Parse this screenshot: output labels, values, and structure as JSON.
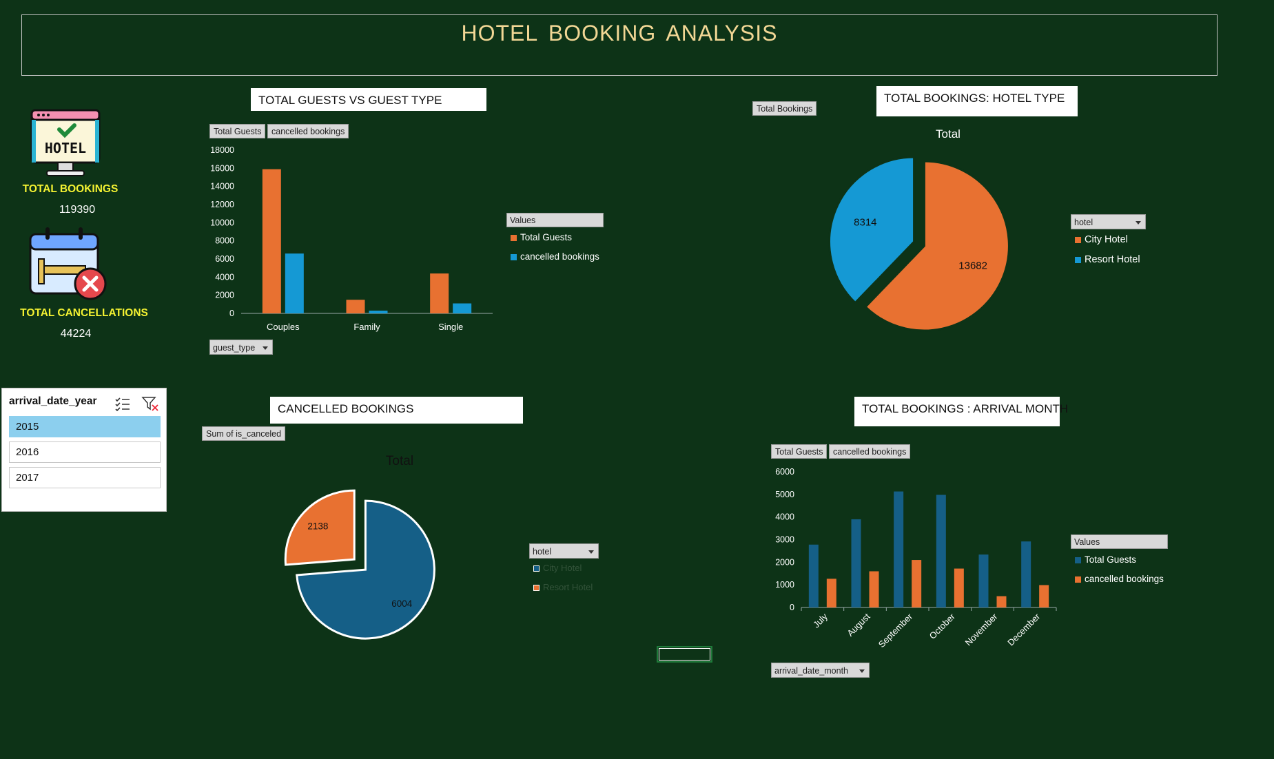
{
  "header": {
    "title": "HOTEL  BOOKING ANALYSIS"
  },
  "colors": {
    "background": "#0d3317",
    "orange": "#e87131",
    "light_blue": "#1599d4",
    "dark_blue": "#155f87",
    "title_gold": "#f2d795",
    "kpi_yellow": "#f4f232"
  },
  "kpis": {
    "bookings_label": "TOTAL BOOKINGS",
    "bookings_value": "119390",
    "bookings_icon": "hotel-monitor-icon",
    "cancellations_label": "TOTAL CANCELLATIONS",
    "cancellations_value": "44224",
    "cancellations_icon": "calendar-cancel-icon"
  },
  "slicer": {
    "title": "arrival_date_year",
    "items": [
      {
        "label": "2015",
        "selected": true
      },
      {
        "label": "2016",
        "selected": false
      },
      {
        "label": "2017",
        "selected": false
      }
    ]
  },
  "guest_chart": {
    "title": "TOTAL GUESTS VS  GUEST TYPE",
    "field_buttons": [
      "Total Guests",
      "cancelled bookings"
    ],
    "filter_label": "guest_type",
    "legend_title": "Values",
    "legend": [
      "Total Guests",
      "cancelled bookings"
    ],
    "y_ticks": [
      "0",
      "2000",
      "4000",
      "6000",
      "8000",
      "10000",
      "12000",
      "14000",
      "16000",
      "18000"
    ]
  },
  "hotel_chart": {
    "title": "TOTAL BOOKINGS: HOTEL TYPE",
    "field_button": "Total Bookings",
    "chart_title": "Total",
    "filter_label": "hotel",
    "legend": [
      "City Hotel",
      "Resort Hotel"
    ]
  },
  "cancel_chart": {
    "title": "CANCELLED BOOKINGS",
    "field_button": "Sum of is_canceled",
    "chart_title": "Total",
    "filter_label": "hotel",
    "legend": [
      "City Hotel",
      "Resort Hotel"
    ]
  },
  "month_chart": {
    "title": "TOTAL BOOKINGS : ARRIVAL MONTH",
    "field_buttons": [
      "Total Guests",
      "cancelled bookings"
    ],
    "filter_label": "arrival_date_month",
    "legend_title": "Values",
    "legend": [
      "Total Guests",
      "cancelled bookings"
    ],
    "y_ticks": [
      "0",
      "1000",
      "2000",
      "3000",
      "4000",
      "5000",
      "6000"
    ]
  },
  "chart_data": [
    {
      "type": "bar",
      "categories": [
        "Couples",
        "Family",
        "Single"
      ],
      "series": [
        {
          "name": "Total Guests",
          "values": [
            15900,
            1500,
            4400
          ]
        },
        {
          "name": "cancelled bookings",
          "values": [
            6600,
            300,
            1100
          ]
        }
      ],
      "ylim": [
        0,
        18000
      ]
    },
    {
      "type": "pie",
      "title": "Total",
      "labels": [
        "City Hotel",
        "Resort Hotel"
      ],
      "values": [
        13682,
        8314
      ]
    },
    {
      "type": "pie",
      "title": "Total",
      "labels": [
        "City Hotel",
        "Resort Hotel"
      ],
      "values": [
        6004,
        2138
      ]
    },
    {
      "type": "bar",
      "categories": [
        "July",
        "August",
        "September",
        "October",
        "November",
        "December"
      ],
      "series": [
        {
          "name": "Total Guests",
          "values": [
            2780,
            3900,
            5130,
            4980,
            2340,
            2920
          ]
        },
        {
          "name": "cancelled bookings",
          "values": [
            1270,
            1600,
            2100,
            1720,
            500,
            990
          ]
        }
      ],
      "ylim": [
        0,
        6000
      ]
    }
  ]
}
